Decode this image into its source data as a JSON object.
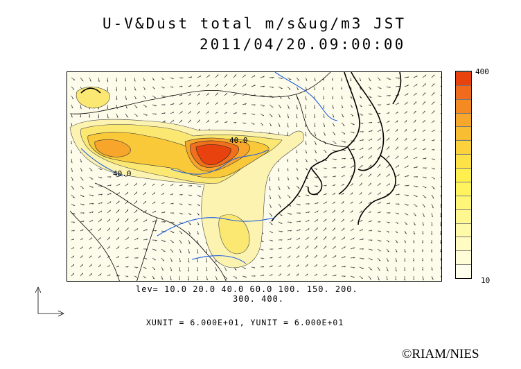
{
  "title": {
    "line1": "U-V&Dust total m/s&ug/m3 JST",
    "line2": "2011/04/20.09:00:00"
  },
  "contour_labels": {
    "label_a": "40.0",
    "label_b": "40.0"
  },
  "levels": {
    "line1": "lev= 10.0 20.0 40.0 60.0 100. 150. 200.",
    "line2": "300. 400."
  },
  "units": "XUNIT = 6.000E+01, YUNIT = 6.000E+01",
  "colorbar": {
    "max_label": "400",
    "min_label": "10",
    "colors": [
      "#e8430f",
      "#f06b1b",
      "#f48b22",
      "#f7a72b",
      "#f9bd33",
      "#fbd23d",
      "#fde248",
      "#fff04f",
      "#fff45f",
      "#fff678",
      "#fff891",
      "#fffaaa",
      "#fffbc1",
      "#fffdd8",
      "#fffeec"
    ]
  },
  "credit": "©RIAM/NIES"
}
